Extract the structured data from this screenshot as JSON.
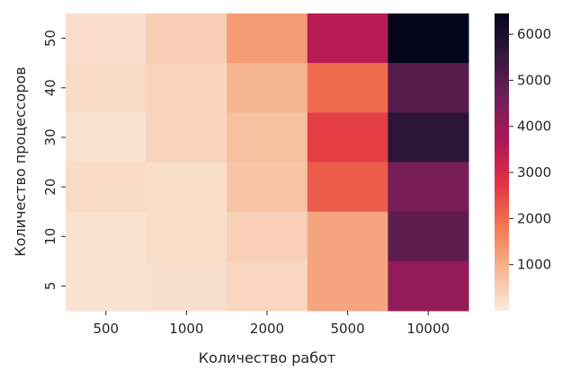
{
  "chart_data": {
    "type": "heatmap",
    "title": "",
    "xlabel": "Количество работ",
    "ylabel": "Количество процессоров",
    "x_categories": [
      "500",
      "1000",
      "2000",
      "5000",
      "10000"
    ],
    "y_categories": [
      "50",
      "40",
      "30",
      "20",
      "10",
      "5"
    ],
    "values": [
      [
        230,
        480,
        1300,
        3500,
        6450
      ],
      [
        260,
        380,
        900,
        2000,
        5000
      ],
      [
        170,
        380,
        720,
        2600,
        5700
      ],
      [
        270,
        220,
        650,
        2200,
        4500
      ],
      [
        150,
        220,
        450,
        1150,
        4900
      ],
      [
        150,
        180,
        350,
        1150,
        4100
      ]
    ],
    "colorbar": {
      "range": [
        0,
        6450
      ],
      "ticks": [
        1000,
        2000,
        3000,
        4000,
        5000,
        6000
      ],
      "colormap": "rocket_r",
      "colors": [
        "#FAEBDD",
        "#F6B48F",
        "#F37651",
        "#E13342",
        "#AD1759",
        "#701F57",
        "#35193E",
        "#03051A"
      ]
    }
  }
}
